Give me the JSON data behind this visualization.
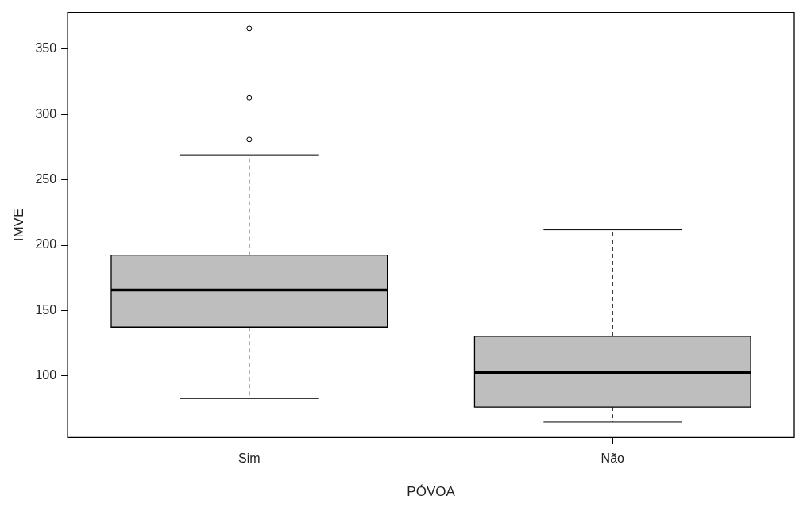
{
  "chart_data": {
    "type": "box",
    "xlabel": "PÓVOA",
    "ylabel": "IMVE",
    "categories": [
      "Sim",
      "Não"
    ],
    "color": "#bebebe",
    "boxes": [
      {
        "low": 82.8,
        "q1": 137.4,
        "median": 165.7,
        "q3": 192.4,
        "high": 269.1,
        "outliers": [
          280.8,
          312.7,
          365.7
        ]
      },
      {
        "low": 64.8,
        "q1": 76.2,
        "median": 102.8,
        "q3": 130.3,
        "high": 211.8
      }
    ],
    "ylim": [
      53,
      378
    ],
    "yticks": [
      100,
      150,
      200,
      250,
      300,
      350
    ],
    "grid": false,
    "legend": false
  }
}
